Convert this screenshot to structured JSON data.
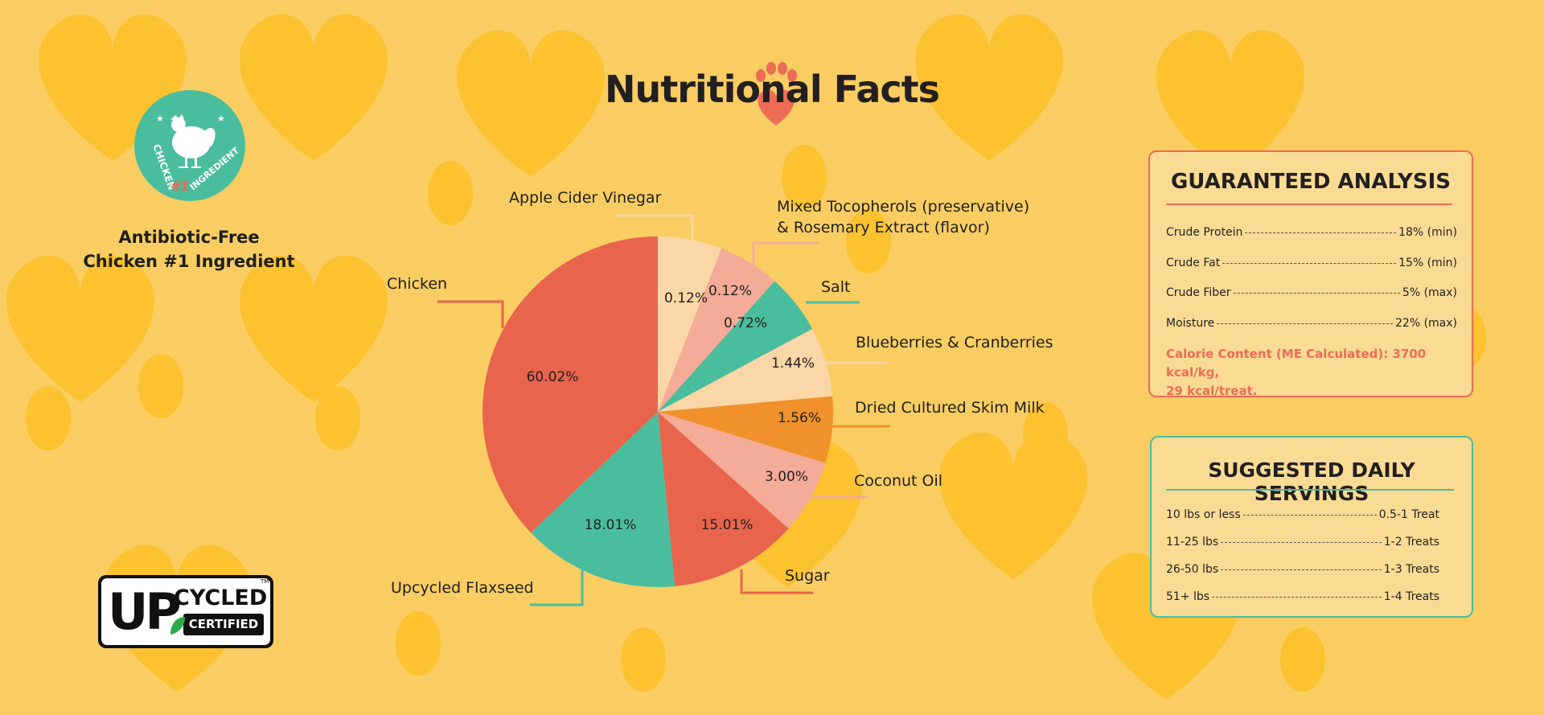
{
  "header": {
    "title": "Nutritional Facts"
  },
  "badge": {
    "circle_top": "CHICKEN",
    "circle_number": "#1",
    "circle_bottom": "INGREDIENT",
    "caption_line1": "Antibiotic-Free",
    "caption_line2": "Chicken #1 Ingredient"
  },
  "logo": {
    "up": "UP",
    "cycled": "CYCLED",
    "certified": "CERTIFIED",
    "tm": "TM"
  },
  "chart_data": {
    "type": "pie",
    "title": "Nutritional Facts",
    "slices": [
      {
        "label": "Apple Cider Vinegar",
        "label_line2": "",
        "value": 0.12,
        "display": "0.12%",
        "color": "#FBD6A6"
      },
      {
        "label": "Mixed Tocopherols (preservative)",
        "label_line2": "& Rosemary Extract (flavor)",
        "value": 0.12,
        "display": "0.12%",
        "color": "#F4AB98"
      },
      {
        "label": "Salt",
        "label_line2": "",
        "value": 0.72,
        "display": "0.72%",
        "color": "#4ABD9E"
      },
      {
        "label": "Blueberries & Cranberries",
        "label_line2": "",
        "value": 1.44,
        "display": "1.44%",
        "color": "#FBD6A6"
      },
      {
        "label": "Dried Cultured Skim Milk",
        "label_line2": "",
        "value": 1.56,
        "display": "1.56%",
        "color": "#F0912C"
      },
      {
        "label": "Coconut Oil",
        "label_line2": "",
        "value": 3.0,
        "display": "3.00%",
        "color": "#F4AB98"
      },
      {
        "label": "Sugar",
        "label_line2": "",
        "value": 15.01,
        "display": "15.01%",
        "color": "#E8644D"
      },
      {
        "label": "Upcycled Flaxseed",
        "label_line2": "",
        "value": 18.01,
        "display": "18.01%",
        "color": "#4ABD9E"
      },
      {
        "label": "Chicken",
        "label_line2": "",
        "value": 60.02,
        "display": "60.02%",
        "color": "#E8644D"
      }
    ]
  },
  "guaranteed_analysis": {
    "title": "GUARANTEED ANALYSIS",
    "rows": [
      {
        "name": "Crude Protein",
        "value": "18% (min)"
      },
      {
        "name": "Crude Fat",
        "value": "15% (min)"
      },
      {
        "name": "Crude Fiber",
        "value": "5% (max)"
      },
      {
        "name": "Moisture",
        "value": "22% (max)"
      }
    ],
    "calorie_line1": "Calorie Content (ME Calculated): 3700 kcal/kg,",
    "calorie_line2": "29 kcal/treat."
  },
  "servings": {
    "title": "SUGGESTED DAILY SERVINGS",
    "rows": [
      {
        "weight": "10 lbs or less",
        "amount": "0.5-1 Treat"
      },
      {
        "weight": "11-25 lbs",
        "amount": "1-2 Treats"
      },
      {
        "weight": "26-50 lbs",
        "amount": "1-3 Treats"
      },
      {
        "weight": "51+ lbs",
        "amount": "1-4 Treats"
      }
    ]
  },
  "colors": {
    "background": "#F9CD62",
    "pattern": "#FCC22F",
    "red": "#E8644D",
    "teal": "#4ABD9E"
  }
}
